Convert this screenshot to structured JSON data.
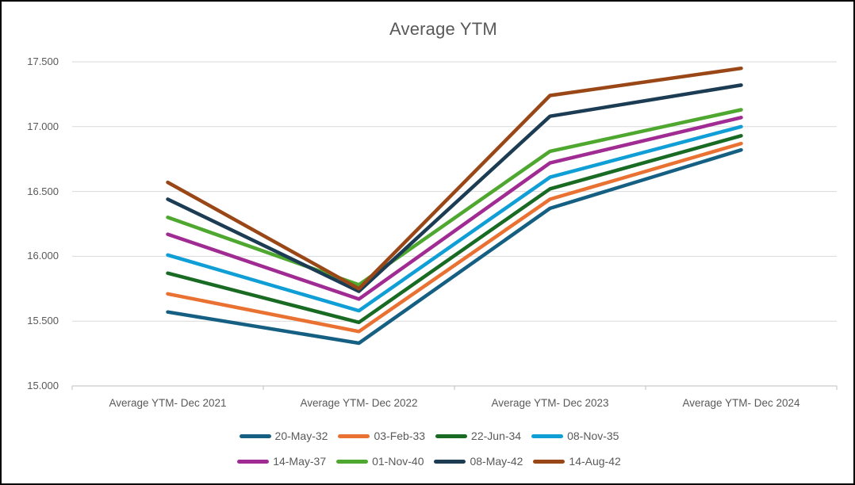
{
  "chart_data": {
    "type": "line",
    "title": "Average YTM",
    "categories": [
      "Average YTM- Dec 2021",
      "Average YTM- Dec 2022",
      "Average YTM- Dec 2023",
      "Average YTM- Dec 2024"
    ],
    "y_axis": {
      "min": 15.0,
      "max": 17.5,
      "step": 0.5,
      "tick_labels": [
        "15.000",
        "15.500",
        "16.000",
        "16.500",
        "17.000",
        "17.500"
      ]
    },
    "grid": true,
    "legend_position": "bottom",
    "series": [
      {
        "name": "20-May-32",
        "color": "#156082",
        "values": [
          15.57,
          15.33,
          16.37,
          16.82
        ]
      },
      {
        "name": "03-Feb-33",
        "color": "#E97132",
        "values": [
          15.71,
          15.42,
          16.44,
          16.87
        ]
      },
      {
        "name": "22-Jun-34",
        "color": "#196B24",
        "values": [
          15.87,
          15.49,
          16.52,
          16.93
        ]
      },
      {
        "name": "08-Nov-35",
        "color": "#0F9ED5",
        "values": [
          16.01,
          15.58,
          16.61,
          17.0
        ]
      },
      {
        "name": "14-May-37",
        "color": "#A02B93",
        "values": [
          16.17,
          15.67,
          16.72,
          17.07
        ]
      },
      {
        "name": "01-Nov-40",
        "color": "#4EA72E",
        "values": [
          16.3,
          15.78,
          16.81,
          17.13
        ]
      },
      {
        "name": "08-May-42",
        "color": "#1C3C54",
        "values": [
          16.44,
          15.73,
          17.08,
          17.32
        ]
      },
      {
        "name": "14-Aug-42",
        "color": "#9A4717",
        "values": [
          16.57,
          15.75,
          17.24,
          17.45
        ]
      }
    ]
  },
  "colors": {
    "text": "#595959",
    "gridline": "#D9D9D9",
    "axis_line": "#BFBFBF",
    "background": "#FFFFFF",
    "frame_border": "#000000"
  }
}
